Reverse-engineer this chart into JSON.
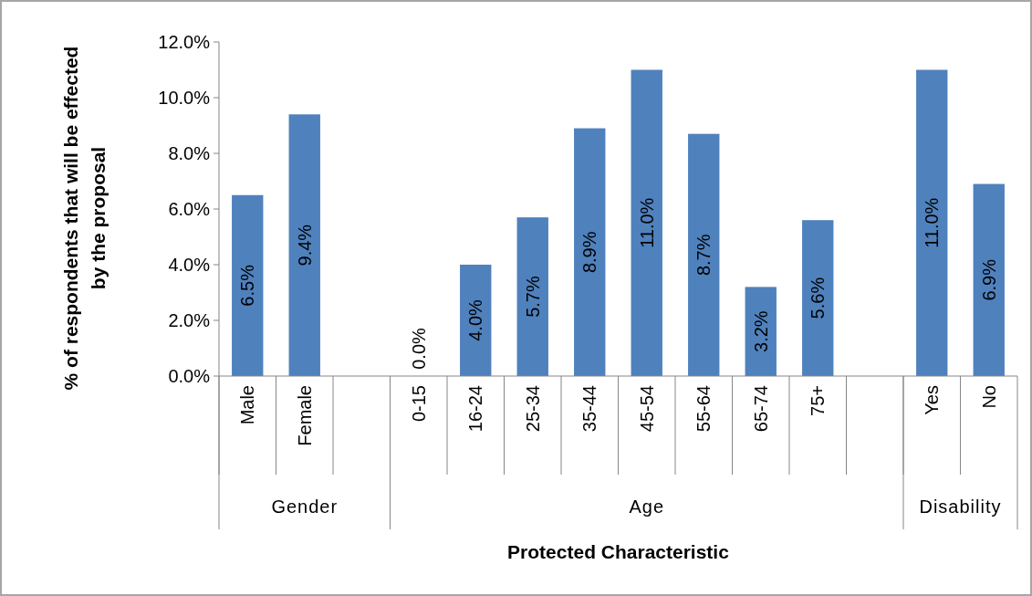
{
  "chart_data": {
    "type": "bar",
    "xlabel": "Protected Characteristic",
    "ylabel": "% of respondents that will be effected\nby the proposal",
    "categories": [
      "Male",
      "Female",
      null,
      "0-15",
      "16-24",
      "25-34",
      "35-44",
      "45-54",
      "55-64",
      "65-74",
      "75+",
      null,
      "Yes",
      "No"
    ],
    "values": [
      6.5,
      9.4,
      null,
      0.0,
      4.0,
      5.7,
      8.9,
      11.0,
      8.7,
      3.2,
      5.6,
      null,
      11.0,
      6.9
    ],
    "value_labels": [
      "6.5%",
      "9.4%",
      null,
      "0.0%",
      "4.0%",
      "5.7%",
      "8.9%",
      "11.0%",
      "8.7%",
      "3.2%",
      "5.6%",
      null,
      "11.0%",
      "6.9%"
    ],
    "color": "#4f81bd",
    "ylim": [
      0,
      12
    ],
    "yticks": [
      {
        "value": 0,
        "label": "0.0%"
      },
      {
        "value": 2,
        "label": "2.0%"
      },
      {
        "value": 4,
        "label": "4.0%"
      },
      {
        "value": 6,
        "label": "6.0%"
      },
      {
        "value": 8,
        "label": "8.0%"
      },
      {
        "value": 10,
        "label": "10.0%"
      },
      {
        "value": 12,
        "label": "12.0%"
      }
    ],
    "annotations": [
      "Gender",
      "Age",
      "Disability"
    ],
    "grid": false
  }
}
